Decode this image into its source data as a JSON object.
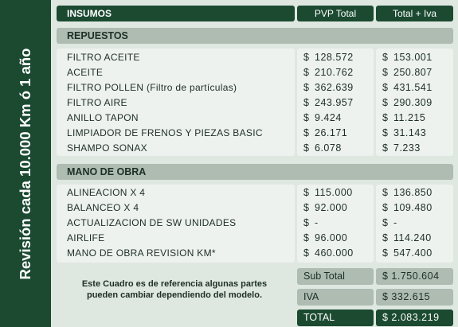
{
  "side_title": "Revisión cada 10.000 Km ó 1 año",
  "header": {
    "col1": "INSUMOS",
    "col2": "PVP Total",
    "col3": "Total + Iva"
  },
  "sections": [
    {
      "title": "REPUESTOS",
      "items": [
        {
          "name": "FILTRO ACEITE",
          "pvp": "128.572",
          "iva": "153.001"
        },
        {
          "name": "ACEITE",
          "pvp": "210.762",
          "iva": "250.807"
        },
        {
          "name": "FILTRO POLLEN (Filtro de partículas)",
          "pvp": "362.639",
          "iva": "431.541"
        },
        {
          "name": "FILTRO AIRE",
          "pvp": "243.957",
          "iva": "290.309"
        },
        {
          "name": "ANILLO TAPON",
          "pvp": "9.424",
          "iva": "11.215"
        },
        {
          "name": "LIMPIADOR DE FRENOS Y PIEZAS BASIC",
          "pvp": "26.171",
          "iva": "31.143"
        },
        {
          "name": "SHAMPO SONAX",
          "pvp": "6.078",
          "iva": "7.233"
        }
      ]
    },
    {
      "title": "MANO DE OBRA",
      "items": [
        {
          "name": "ALINEACION X 4",
          "pvp": "115.000",
          "iva": "136.850"
        },
        {
          "name": "BALANCEO X 4",
          "pvp": "92.000",
          "iva": "109.480"
        },
        {
          "name": "ACTUALIZACION DE SW UNIDADES",
          "pvp": "-",
          "iva": "-"
        },
        {
          "name": "AIRLIFE",
          "pvp": "96.000",
          "iva": "114.240"
        },
        {
          "name": "MANO DE OBRA REVISION KM*",
          "pvp": "460.000",
          "iva": "547.400"
        }
      ]
    }
  ],
  "currency": "$",
  "note": "Este Cuadro es de referencia algunas partes pueden cambiar dependiendo del modelo.",
  "totals": [
    {
      "label": "Sub Total",
      "value": "$ 1.750.604"
    },
    {
      "label": "IVA",
      "value": "$ 332.615"
    },
    {
      "label": "TOTAL",
      "value": "$ 2.083.219"
    }
  ]
}
